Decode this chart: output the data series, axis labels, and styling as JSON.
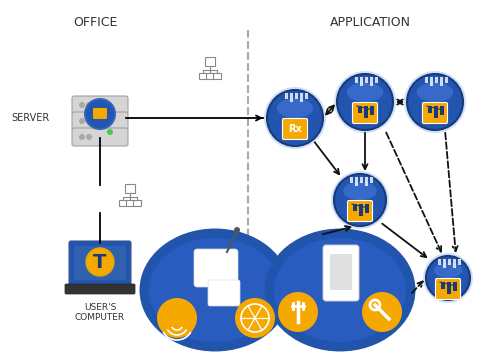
{
  "bg_color": "#ffffff",
  "office_label": "OFFICE",
  "application_label": "APPLICATION",
  "server_label": "SERVER",
  "user_label": "USER'S\nCOMPUTER",
  "node_blue_dark": "#1a3a7a",
  "node_blue_mid": "#2255b0",
  "node_blue_light": "#4488dd",
  "node_blue_grad": "#3366cc",
  "circle_blue_dark": "#1a3a8a",
  "circle_blue_mid": "#1e55b5",
  "circle_outline": "#2255aa",
  "yellow": "#f5a800",
  "white": "#ffffff",
  "gray_server": "#c8c8c8",
  "gray_hub": "#888888",
  "text_color": "#333333",
  "arrow_color": "#111111"
}
